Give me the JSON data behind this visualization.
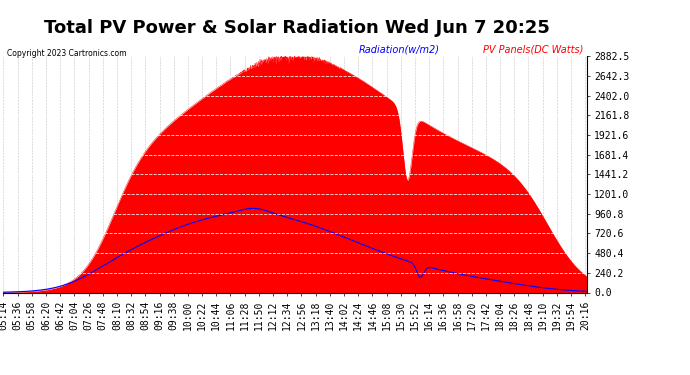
{
  "title": "Total PV Power & Solar Radiation Wed Jun 7 20:25",
  "copyright": "Copyright 2023 Cartronics.com",
  "legend_radiation": "Radiation(w/m2)",
  "legend_panels": "PV Panels(DC Watts)",
  "y_ticks": [
    0.0,
    240.2,
    480.4,
    720.6,
    960.8,
    1201.0,
    1441.2,
    1681.4,
    1921.6,
    2161.8,
    2402.0,
    2642.3,
    2882.5
  ],
  "ylim": [
    0,
    2882.5
  ],
  "background_color": "#ffffff",
  "grid_color": "#aaaaaa",
  "title_fontsize": 13,
  "tick_fontsize": 7,
  "x_start_min": 314,
  "x_end_min": 1218,
  "tick_interval_min": 22
}
